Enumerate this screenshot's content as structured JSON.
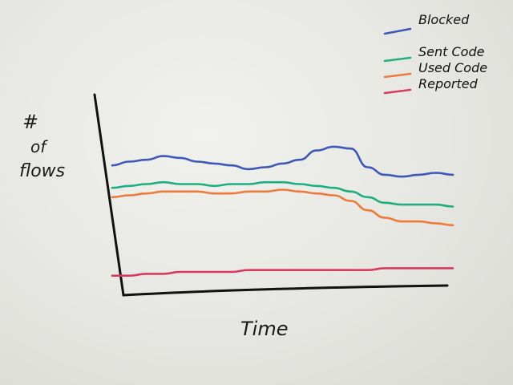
{
  "chart_data": {
    "type": "line",
    "ylabel": "# of flows",
    "xlabel": "Time",
    "legend_position": "top-right",
    "x": [
      0,
      1,
      2,
      3,
      4,
      5,
      6,
      7,
      8,
      9,
      10,
      11,
      12,
      13,
      14,
      15,
      16,
      17,
      18,
      19,
      20
    ],
    "ylim": [
      0,
      100
    ],
    "grid": false,
    "axis_ticks": false,
    "series": [
      {
        "name": "Blocked",
        "color": "#3f57b5",
        "values": [
          63,
          65,
          66,
          68,
          67,
          65,
          64,
          63,
          61,
          62,
          64,
          66,
          71,
          73,
          72,
          62,
          58,
          57,
          58,
          59,
          58
        ]
      },
      {
        "name": "Sent Code",
        "color": "#1fae82",
        "values": [
          51,
          52,
          53,
          54,
          53,
          53,
          52,
          53,
          53,
          54,
          54,
          53,
          52,
          51,
          49,
          46,
          43,
          42,
          42,
          42,
          41
        ]
      },
      {
        "name": "Used Code",
        "color": "#ec7a3a",
        "values": [
          46,
          47,
          48,
          49,
          49,
          49,
          48,
          48,
          49,
          49,
          50,
          49,
          48,
          47,
          44,
          39,
          35,
          33,
          33,
          32,
          31
        ]
      },
      {
        "name": "Reported",
        "color": "#d63a5f",
        "values": [
          4,
          4,
          5,
          5,
          6,
          6,
          6,
          6,
          7,
          7,
          7,
          7,
          7,
          7,
          7,
          7,
          8,
          8,
          8,
          8,
          8
        ]
      }
    ]
  }
}
